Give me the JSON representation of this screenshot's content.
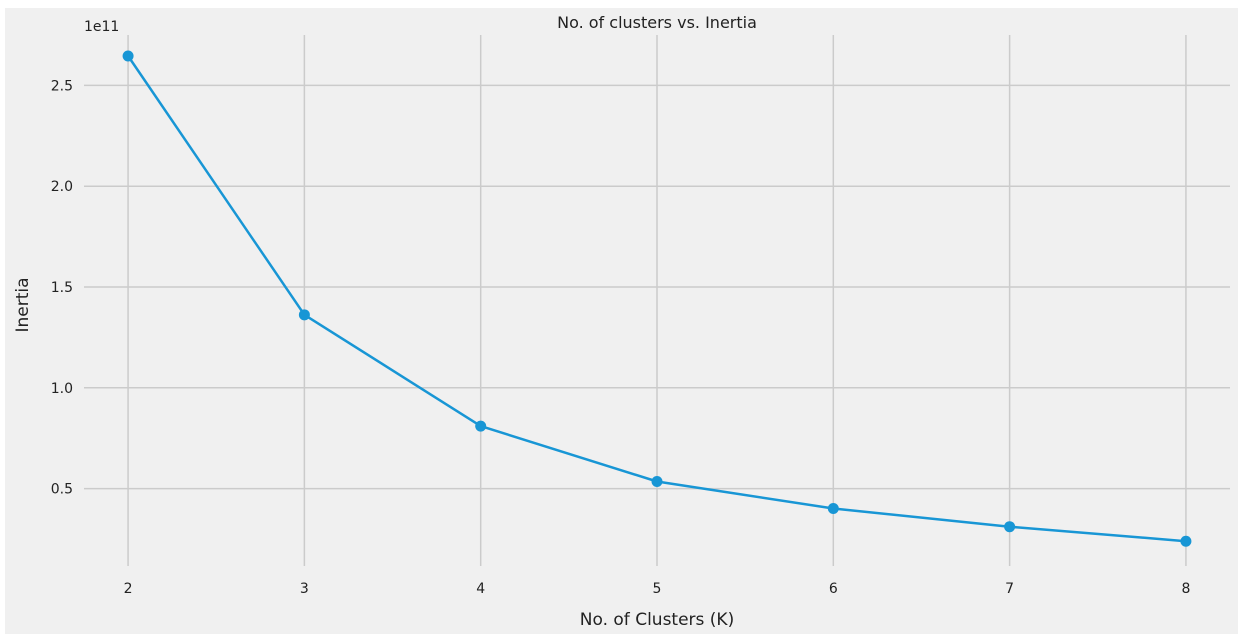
{
  "chart_data": {
    "type": "line",
    "title": "No. of clusters vs. Inertia",
    "xlabel": "No. of Clusters (K)",
    "ylabel": "Inertia",
    "y_offset_label": "1e11",
    "x": [
      2,
      3,
      4,
      5,
      6,
      7,
      8
    ],
    "series": [
      {
        "values": [
          264600000000,
          136200000000,
          81000000000,
          53500000000,
          40100000000,
          31100000000,
          23900000000
        ],
        "color": "#1896d5",
        "marker": "circle"
      }
    ],
    "x_ticks": [
      2,
      3,
      4,
      5,
      6,
      7,
      8
    ],
    "y_ticks": [
      0.5,
      1.0,
      1.5,
      2.0,
      2.5
    ],
    "y_tick_labels": [
      "0.5",
      "1.0",
      "1.5",
      "2.0",
      "2.5"
    ],
    "y_tick_scale": 100000000000,
    "xlim": [
      1.75,
      8.25
    ],
    "ylim": [
      11600000000,
      275000000000
    ],
    "grid": true,
    "legend": "none",
    "style": "fivethirtyeight",
    "colors": {
      "background": "#f0f0f0",
      "grid": "#cbcbcb",
      "line": "#1896d5"
    }
  }
}
